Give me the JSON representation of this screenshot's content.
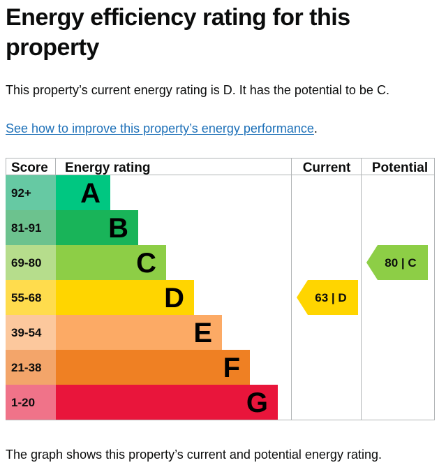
{
  "page": {
    "title": "Energy efficiency rating for this property",
    "intro": "This property’s current energy rating is D. It has the potential to be C.",
    "improve_link": "See how to improve this property’s energy performance",
    "improve_link_suffix": ".",
    "footer": "The graph shows this property’s current and potential energy rating."
  },
  "chart_data": {
    "type": "table",
    "headers": {
      "score": "Score",
      "rating": "Energy rating",
      "current": "Current",
      "potential": "Potential"
    },
    "bands": [
      {
        "range": "92+",
        "letter": "A",
        "color": "#00c781",
        "range_color": "#66c9a3"
      },
      {
        "range": "81-91",
        "letter": "B",
        "color": "#19b459",
        "range_color": "#6cc28e"
      },
      {
        "range": "69-80",
        "letter": "C",
        "color": "#8dce46",
        "range_color": "#b6dd8c"
      },
      {
        "range": "55-68",
        "letter": "D",
        "color": "#ffd500",
        "range_color": "#ffdc4d"
      },
      {
        "range": "39-54",
        "letter": "E",
        "color": "#fcaa65",
        "range_color": "#fcc89d"
      },
      {
        "range": "21-38",
        "letter": "F",
        "color": "#ef8023",
        "range_color": "#f3a56a"
      },
      {
        "range": "1-20",
        "letter": "G",
        "color": "#e9153b",
        "range_color": "#f07389"
      }
    ],
    "current": {
      "score": 63,
      "band": "D",
      "label": "63 | D",
      "color": "#ffd500"
    },
    "potential": {
      "score": 80,
      "band": "C",
      "label": "80 | C",
      "color": "#8dce46"
    }
  }
}
